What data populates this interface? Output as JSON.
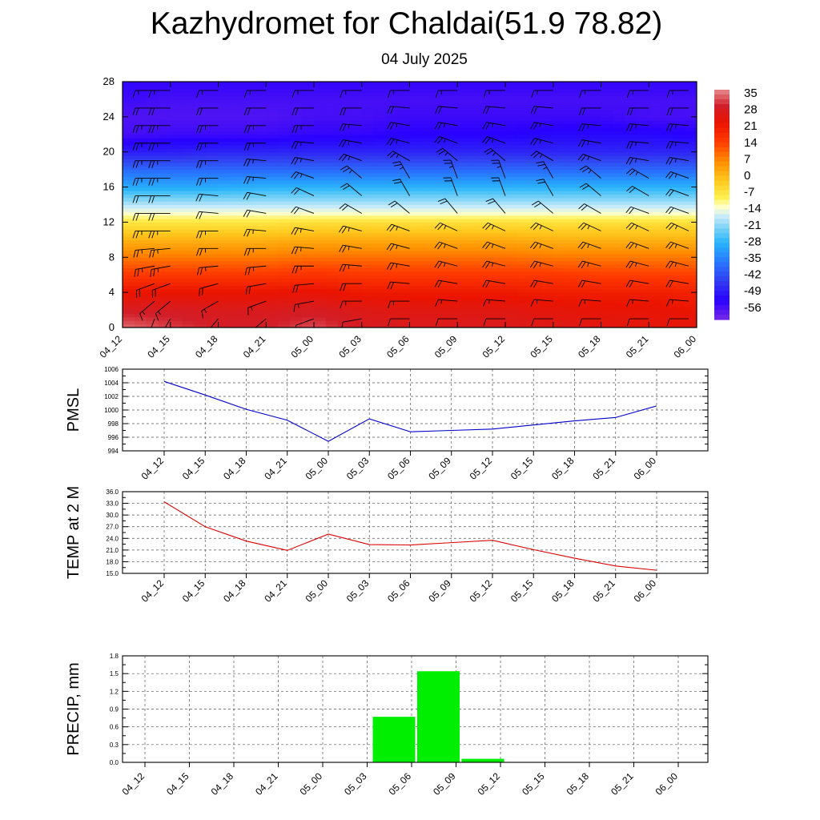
{
  "title": "Kazhydromet for Chaldai(51.9 78.82)",
  "subtitle": "04 July 2025",
  "time_labels": [
    "04_12",
    "04_15",
    "04_18",
    "04_21",
    "05_00",
    "05_03",
    "05_06",
    "05_09",
    "05_12",
    "05_15",
    "05_18",
    "05_21",
    "06_00"
  ],
  "colors": {
    "pmsl_line": "#0000cc",
    "temp_line": "#dd0000",
    "precip_bar": "#00ee00",
    "barb": "#000000"
  },
  "chart_data": [
    {
      "type": "heatmap",
      "title": "",
      "ylim": [
        0,
        28
      ],
      "yticks": [
        0,
        4,
        8,
        12,
        16,
        20,
        24,
        28
      ],
      "x": [
        "04_12",
        "04_15",
        "04_18",
        "04_21",
        "05_00",
        "05_03",
        "05_06",
        "05_09",
        "05_12",
        "05_15",
        "05_18",
        "05_21",
        "06_00"
      ],
      "y_levels": [
        0,
        2,
        4,
        6,
        8,
        10,
        12,
        13,
        14,
        16,
        18,
        20,
        22,
        24,
        26,
        28
      ],
      "values": [
        [
          34,
          31,
          29,
          29,
          32,
          28,
          27,
          27,
          27,
          26,
          25,
          24,
          24
        ],
        [
          28,
          28,
          27,
          27,
          28,
          26,
          25,
          25,
          25,
          24,
          23,
          23,
          22
        ],
        [
          22,
          22,
          22,
          22,
          23,
          21,
          21,
          21,
          21,
          20,
          20,
          20,
          19
        ],
        [
          15,
          15,
          15,
          15,
          16,
          15,
          15,
          15,
          15,
          15,
          14,
          14,
          14
        ],
        [
          8,
          8,
          8,
          8,
          9,
          9,
          9,
          9,
          9,
          8,
          8,
          8,
          8
        ],
        [
          1,
          1,
          1,
          1,
          2,
          2,
          2,
          2,
          2,
          1,
          1,
          1,
          1
        ],
        [
          -7,
          -7,
          -7,
          -7,
          -6,
          -6,
          -6,
          -6,
          -6,
          -6,
          -6,
          -6,
          -6
        ],
        [
          -13,
          -13,
          -13,
          -13,
          -13,
          -13,
          -13,
          -13,
          -13,
          -13,
          -13,
          -13,
          -13
        ],
        [
          -18,
          -18,
          -18,
          -18,
          -18,
          -18,
          -18,
          -18,
          -18,
          -18,
          -18,
          -18,
          -18
        ],
        [
          -29,
          -29,
          -29,
          -28,
          -28,
          -28,
          -28,
          -28,
          -28,
          -28,
          -28,
          -28,
          -28
        ],
        [
          -38,
          -38,
          -38,
          -38,
          -38,
          -38,
          -38,
          -38,
          -38,
          -38,
          -38,
          -38,
          -38
        ],
        [
          -48,
          -48,
          -47,
          -47,
          -47,
          -47,
          -47,
          -47,
          -47,
          -47,
          -47,
          -47,
          -47
        ],
        [
          -55,
          -54,
          -54,
          -54,
          -53,
          -53,
          -52,
          -52,
          -52,
          -51,
          -51,
          -51,
          -52
        ],
        [
          -56,
          -56,
          -56,
          -56,
          -55,
          -55,
          -54,
          -54,
          -54,
          -54,
          -54,
          -55,
          -55
        ],
        [
          -54,
          -55,
          -55,
          -55,
          -55,
          -55,
          -55,
          -55,
          -55,
          -55,
          -55,
          -55,
          -55
        ],
        [
          -53,
          -53,
          -53,
          -53,
          -53,
          -53,
          -53,
          -53,
          -53,
          -53,
          -53,
          -53,
          -53
        ]
      ],
      "colorbar": {
        "labels": [
          "35",
          "28",
          "21",
          "14",
          "7",
          "0",
          "-7",
          "-14",
          "-21",
          "-28",
          "-35",
          "-42",
          "-49",
          "-56"
        ]
      },
      "wind_barbs": {
        "levels": [
          1,
          3,
          5,
          7,
          9,
          11,
          13,
          15,
          17,
          19,
          21,
          23,
          25,
          27
        ],
        "direction_deg": [
          [
            200,
            210,
            220,
            230,
            250,
            260,
            270,
            270,
            270,
            270,
            270,
            270,
            270
          ],
          [
            230,
            230,
            240,
            250,
            260,
            270,
            270,
            275,
            275,
            275,
            275,
            275,
            275
          ],
          [
            250,
            250,
            255,
            260,
            265,
            270,
            275,
            280,
            280,
            280,
            280,
            280,
            280
          ],
          [
            260,
            260,
            265,
            265,
            270,
            275,
            280,
            285,
            285,
            285,
            285,
            285,
            285
          ],
          [
            265,
            265,
            270,
            270,
            275,
            280,
            285,
            290,
            290,
            290,
            290,
            290,
            290
          ],
          [
            270,
            270,
            270,
            275,
            280,
            285,
            290,
            295,
            295,
            295,
            295,
            295,
            295
          ],
          [
            270,
            270,
            275,
            280,
            290,
            300,
            310,
            320,
            320,
            310,
            300,
            290,
            290
          ],
          [
            270,
            270,
            275,
            280,
            295,
            310,
            330,
            340,
            340,
            330,
            310,
            300,
            290
          ],
          [
            270,
            270,
            270,
            275,
            290,
            310,
            330,
            340,
            340,
            330,
            310,
            300,
            290
          ],
          [
            270,
            270,
            270,
            275,
            280,
            290,
            300,
            310,
            310,
            300,
            290,
            280,
            280
          ],
          [
            270,
            270,
            270,
            270,
            275,
            280,
            285,
            290,
            290,
            285,
            280,
            275,
            275
          ],
          [
            270,
            270,
            270,
            270,
            270,
            275,
            280,
            280,
            280,
            280,
            275,
            275,
            275
          ],
          [
            270,
            270,
            270,
            270,
            270,
            270,
            275,
            275,
            275,
            275,
            270,
            270,
            270
          ],
          [
            270,
            270,
            270,
            270,
            270,
            270,
            270,
            270,
            270,
            270,
            270,
            270,
            270
          ]
        ],
        "speed_kt": [
          [
            10,
            10,
            10,
            10,
            10,
            10,
            10,
            10,
            10,
            10,
            10,
            10,
            10
          ],
          [
            15,
            15,
            15,
            15,
            15,
            15,
            15,
            15,
            15,
            15,
            15,
            15,
            15
          ],
          [
            20,
            20,
            20,
            20,
            20,
            20,
            20,
            20,
            20,
            20,
            20,
            20,
            20
          ],
          [
            25,
            25,
            25,
            25,
            25,
            25,
            25,
            25,
            25,
            25,
            25,
            25,
            25
          ],
          [
            25,
            25,
            25,
            25,
            25,
            25,
            25,
            25,
            25,
            25,
            25,
            25,
            25
          ],
          [
            25,
            25,
            25,
            25,
            25,
            25,
            25,
            25,
            25,
            25,
            25,
            25,
            25
          ],
          [
            20,
            20,
            20,
            20,
            20,
            20,
            20,
            20,
            20,
            20,
            20,
            20,
            20
          ],
          [
            20,
            20,
            20,
            20,
            20,
            20,
            20,
            20,
            20,
            20,
            20,
            20,
            20
          ],
          [
            25,
            25,
            25,
            25,
            25,
            25,
            25,
            25,
            25,
            25,
            25,
            25,
            25
          ],
          [
            25,
            25,
            25,
            25,
            25,
            25,
            25,
            25,
            25,
            25,
            25,
            25,
            25
          ],
          [
            25,
            25,
            25,
            25,
            25,
            25,
            25,
            25,
            25,
            25,
            25,
            25,
            25
          ],
          [
            25,
            25,
            25,
            25,
            25,
            25,
            25,
            25,
            25,
            25,
            25,
            25,
            25
          ],
          [
            20,
            20,
            20,
            20,
            20,
            20,
            20,
            20,
            20,
            20,
            20,
            20,
            20
          ],
          [
            15,
            15,
            15,
            15,
            15,
            15,
            15,
            15,
            15,
            15,
            15,
            15,
            15
          ]
        ]
      }
    },
    {
      "type": "line",
      "ylabel": "PMSL",
      "ylim": [
        994,
        1006
      ],
      "yticks": [
        994,
        996,
        998,
        1000,
        1002,
        1004,
        1006
      ],
      "x": [
        "04_12",
        "04_15",
        "04_18",
        "04_21",
        "05_00",
        "05_03",
        "05_06",
        "05_09",
        "05_12",
        "05_15",
        "05_18",
        "05_21",
        "06_00"
      ],
      "values": [
        1004.2,
        1002.2,
        1000.1,
        998.5,
        995.4,
        998.7,
        996.8,
        997.0,
        997.2,
        997.8,
        998.4,
        998.9,
        1000.6
      ]
    },
    {
      "type": "line",
      "ylabel": "TEMP at 2 M",
      "ylim": [
        15.0,
        36.0
      ],
      "yticks": [
        "15.0",
        "18.0",
        "21.0",
        "24.0",
        "27.0",
        "30.0",
        "33.0",
        "36.0"
      ],
      "x": [
        "04_12",
        "04_15",
        "04_18",
        "04_21",
        "05_00",
        "05_03",
        "05_06",
        "05_09",
        "05_12",
        "05_15",
        "05_18",
        "05_21",
        "06_00"
      ],
      "values": [
        33.4,
        27.0,
        23.3,
        20.9,
        25.1,
        22.4,
        22.3,
        22.9,
        23.5,
        21.1,
        18.9,
        16.9,
        15.8
      ]
    },
    {
      "type": "bar",
      "ylabel": "PRECIP, mm",
      "ylim": [
        0.0,
        1.8
      ],
      "yticks": [
        "0.0",
        "0.3",
        "0.6",
        "0.9",
        "1.2",
        "1.5",
        "1.8"
      ],
      "x": [
        "04_12",
        "04_15",
        "04_18",
        "04_21",
        "05_00",
        "05_03",
        "05_06",
        "05_09",
        "05_12",
        "05_15",
        "05_18",
        "05_21",
        "06_00"
      ],
      "values": [
        0,
        0,
        0,
        0,
        0,
        0,
        0.77,
        1.54,
        0.06,
        0,
        0,
        0,
        0
      ]
    }
  ]
}
